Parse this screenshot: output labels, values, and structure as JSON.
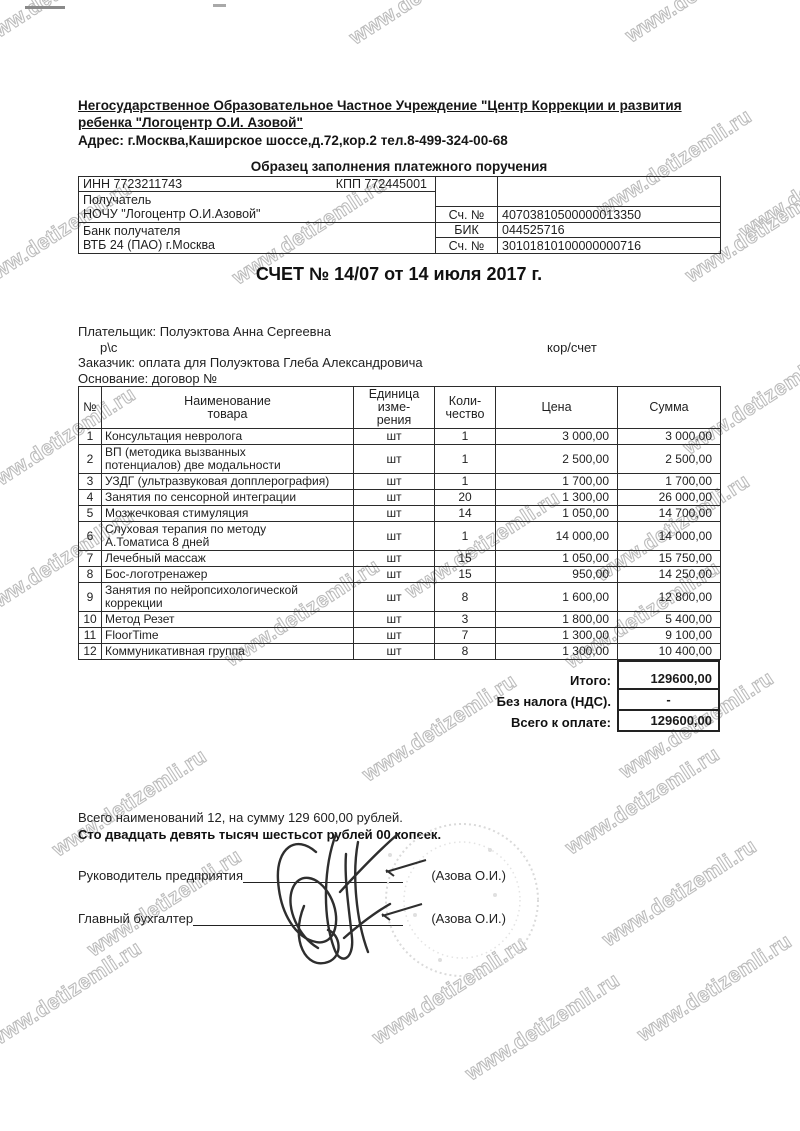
{
  "watermark": {
    "text": "www.detizemli.ru"
  },
  "header": {
    "org_line1": "Негосударственное Образовательное Частное Учреждение \"Центр Коррекции и развития",
    "org_line2": "ребенка \"Логоцентр О.И. Азовой\"",
    "address": "Адрес: г.Москва,Каширское шоссе,д.72,кор.2  тел.8-499-324-00-68",
    "sample_title": "Образец заполнения платежного поручения"
  },
  "bank": {
    "inn": "ИНН 7723211743",
    "kpp": "КПП 772445001",
    "recipient_label": "Получатель",
    "recipient": "НОЧУ \"Логоцентр О.И.Азовой\"",
    "account_label": "Сч. №",
    "account": "40703810500000013350",
    "bank_label": "Банк получателя",
    "bank_name": "ВТБ 24 (ПАО) г.Москва",
    "bik_label": "БИК",
    "bik": "044525716",
    "corr_label": "Сч. №",
    "corr": "30101810100000000716"
  },
  "invoice": {
    "title": "СЧЕТ № 14/07 от 14 июля  2017 г."
  },
  "parties": {
    "payer": "Плательщик: Полуэктова Анна Сергеевна",
    "rs": "р\\с",
    "korschet": "кор/счет",
    "customer": "Заказчик: оплата для Полуэктова Глеба Александровича",
    "basis": "Основание: договор №"
  },
  "items_table": {
    "headers": {
      "num": "№",
      "name": "Наименование\nтовара",
      "unit": "Единица\nизме-\nрения",
      "qty": "Коли-\nчество",
      "price": "Цена",
      "sum": "Сумма"
    },
    "rows": [
      {
        "num": "1",
        "name": "Консультация невролога",
        "unit": "шт",
        "qty": "1",
        "price": "3 000,00",
        "sum": "3 000,00"
      },
      {
        "num": "2",
        "name": "ВП (методика вызванных\nпотенциалов) две модальности",
        "unit": "шт",
        "qty": "1",
        "price": "2 500,00",
        "sum": "2 500,00"
      },
      {
        "num": "3",
        "name": "УЗДГ (ультразвуковая допплерография)",
        "unit": "шт",
        "qty": "1",
        "price": "1 700,00",
        "sum": "1 700,00"
      },
      {
        "num": "4",
        "name": "Занятия по сенсорной интеграции",
        "unit": "шт",
        "qty": "20",
        "price": "1 300,00",
        "sum": "26 000,00"
      },
      {
        "num": "5",
        "name": "Мозжечковая стимуляция",
        "unit": "шт",
        "qty": "14",
        "price": "1 050,00",
        "sum": "14 700,00"
      },
      {
        "num": "6",
        "name": "Слуховая терапия по методу\nА.Томатиса 8 дней",
        "unit": "шт",
        "qty": "1",
        "price": "14 000,00",
        "sum": "14 000,00"
      },
      {
        "num": "7",
        "name": "Лечебный массаж",
        "unit": "шт",
        "qty": "15",
        "price": "1 050,00",
        "sum": "15 750,00"
      },
      {
        "num": "8",
        "name": "Бос-логотренажер",
        "unit": "шт",
        "qty": "15",
        "price": "950,00",
        "sum": "14 250,00"
      },
      {
        "num": "9",
        "name": "Занятия по нейропсихологической\nкоррекции",
        "unit": "шт",
        "qty": "8",
        "price": "1 600,00",
        "sum": "12 800,00"
      },
      {
        "num": "10",
        "name": "Метод Резет",
        "unit": "шт",
        "qty": "3",
        "price": "1 800,00",
        "sum": "5 400,00"
      },
      {
        "num": "11",
        "name": "FloorTime",
        "unit": "шт",
        "qty": "7",
        "price": "1 300,00",
        "sum": "9 100,00"
      },
      {
        "num": "12",
        "name": "Коммуникативная группа",
        "unit": "шт",
        "qty": "8",
        "price": "1 300,00",
        "sum": "10 400,00"
      }
    ]
  },
  "totals": {
    "itogo_label": "Итого:",
    "itogo": "129600,00",
    "tax_label": "Без налога (НДС).",
    "tax": "-",
    "total_label": "Всего к оплате:",
    "total": "129600,00"
  },
  "footer": {
    "summary": "Всего наименований 12, на сумму 129 600,00 рублей.",
    "amount_words": "Сто двадцать девять тысяч шестьсот рублей  00 копеек.",
    "director_label": "Руководитель предприятия",
    "director_name": "(Азова О.И.)",
    "accountant_label": "Главный бухгалтер",
    "accountant_name": "(Азова О.И.)"
  }
}
